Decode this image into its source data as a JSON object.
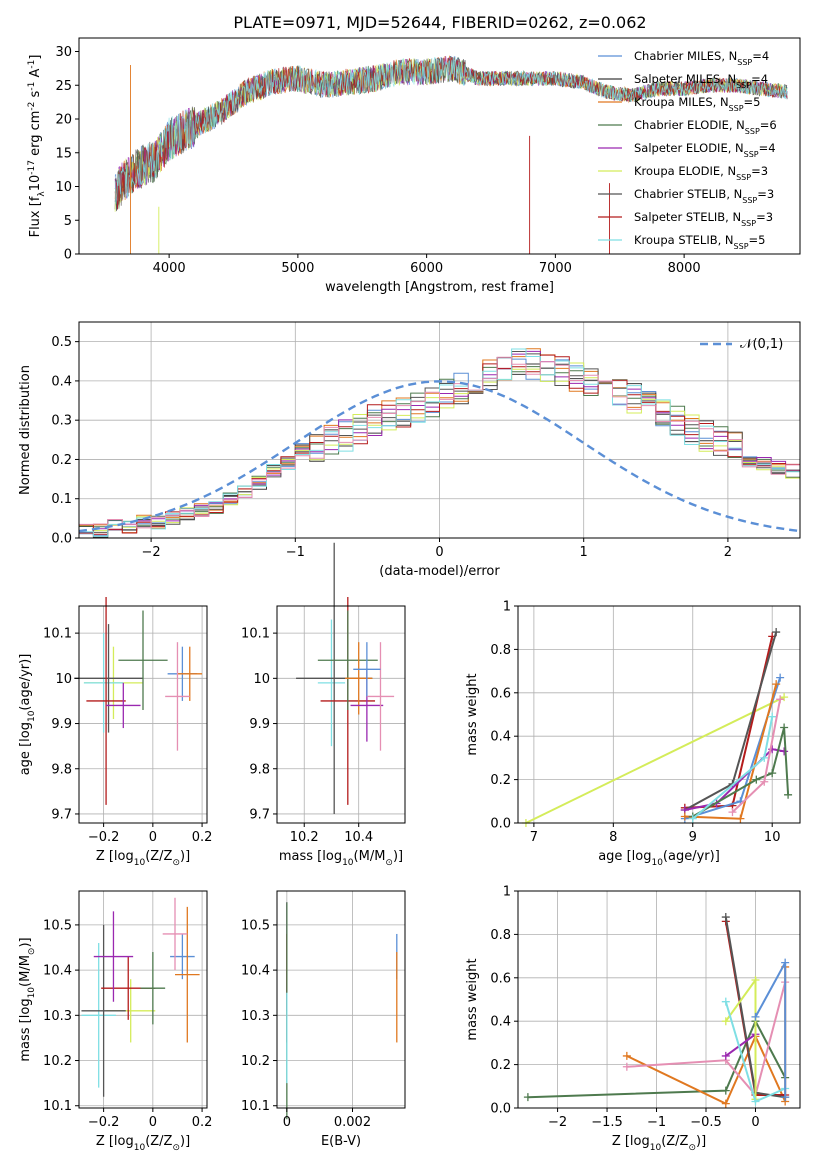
{
  "figure_title": "PLATE=0971, MJD=52644, FIBERID=0262, z=0.062",
  "legend_spectrum": [
    {
      "name": "Chabrier MILES, N$_{SSP}$=4",
      "main": "Chabrier MILES, N",
      "sub": "SSP",
      "tail": "=4",
      "color": "#5b8fd6"
    },
    {
      "name": "Salpeter MILES, N_SSP=4",
      "main": "Salpeter MILES, N",
      "sub": "SSP",
      "tail": "=4",
      "color": "#3c3c3c"
    },
    {
      "name": "Kroupa MILES, N_SSP=5",
      "main": "Kroupa MILES, N",
      "sub": "SSP",
      "tail": "=5",
      "color": "#e07820"
    },
    {
      "name": "Chabrier ELODIE, N_SSP=6",
      "main": "Chabrier ELODIE, N",
      "sub": "SSP",
      "tail": "=6",
      "color": "#4e7a4e"
    },
    {
      "name": "Salpeter ELODIE, N_SSP=4",
      "main": "Salpeter ELODIE, N",
      "sub": "SSP",
      "tail": "=4",
      "color": "#9a28b0"
    },
    {
      "name": "Kroupa ELODIE, N_SSP=3",
      "main": "Kroupa ELODIE, N",
      "sub": "SSP",
      "tail": "=3",
      "color": "#d4ec5a"
    },
    {
      "name": "Chabrier STELIB, N_SSP=3",
      "main": "Chabrier STELIB, N",
      "sub": "SSP",
      "tail": "=3",
      "color": "#555555"
    },
    {
      "name": "Salpeter STELIB, N_SSP=3",
      "main": "Salpeter STELIB, N",
      "sub": "SSP",
      "tail": "=3",
      "color": "#b41c1c"
    },
    {
      "name": "Kroupa STELIB, N_SSP=5",
      "main": "Kroupa STELIB, N",
      "sub": "SSP",
      "tail": "=5",
      "color": "#7fdfe4"
    }
  ],
  "hist_colors": [
    "#5b8fd6",
    "#3c3c3c",
    "#e07820",
    "#4e7a4e",
    "#9a28b0",
    "#d4ec5a",
    "#555555",
    "#b41c1c",
    "#7fdfe4",
    "#e58fb3"
  ],
  "chart_data": [
    {
      "id": "spectrum",
      "type": "line",
      "xlabel": "wavelength [Angstrom, rest frame]",
      "ylabel": "Flux [f$_\\lambda$10$^{-17}$ erg cm$^{-2}$ s$^{-1}$ A$^{-1}$]",
      "xlim": [
        3300,
        8900
      ],
      "ylim": [
        0,
        32
      ],
      "xticks": [
        4000,
        5000,
        6000,
        7000,
        8000
      ],
      "yticks": [
        0,
        5,
        10,
        15,
        20,
        25,
        30
      ],
      "grid": false,
      "legend": "top-right",
      "x": [
        3580,
        3700,
        3800,
        3900,
        4000,
        4200,
        4400,
        4600,
        4800,
        5000,
        5200,
        5400,
        5600,
        5800,
        6000,
        6200,
        6400,
        6600,
        6800,
        7000,
        7200,
        7400,
        7600,
        7800,
        8000,
        8200,
        8400,
        8600,
        8800
      ],
      "y": [
        9,
        12,
        13,
        14,
        17,
        19,
        21,
        24,
        25.5,
        26,
        25,
        25.5,
        26,
        27,
        27,
        27.5,
        26,
        26,
        26,
        26,
        25.5,
        24,
        23.5,
        24.5,
        24.5,
        25,
        25,
        24.5,
        24
      ]
    },
    {
      "id": "residual_hist",
      "type": "histogram",
      "xlabel": "(data-model)/error",
      "ylabel": "Normed distribution",
      "xlim": [
        -2.5,
        2.5
      ],
      "ylim": [
        0,
        0.55
      ],
      "xticks": [
        -2,
        -1,
        0,
        1,
        2
      ],
      "yticks": [
        0.0,
        0.1,
        0.2,
        0.3,
        0.4,
        0.5
      ],
      "grid": true,
      "legend": "top-right",
      "reference_curve": "$\\mathcal{N}(0,1)$",
      "bin_width": 0.1,
      "bin_start": -2.5,
      "base_values": [
        0.02,
        0.02,
        0.03,
        0.03,
        0.04,
        0.04,
        0.05,
        0.06,
        0.07,
        0.08,
        0.1,
        0.12,
        0.14,
        0.17,
        0.19,
        0.21,
        0.23,
        0.25,
        0.26,
        0.28,
        0.3,
        0.31,
        0.32,
        0.33,
        0.35,
        0.37,
        0.38,
        0.4,
        0.42,
        0.43,
        0.45,
        0.44,
        0.43,
        0.42,
        0.41,
        0.4,
        0.39,
        0.38,
        0.36,
        0.34,
        0.32,
        0.3,
        0.28,
        0.26,
        0.25,
        0.23,
        0.21,
        0.19,
        0.18,
        0.17,
        0.15,
        0.13,
        0.12,
        0.1,
        0.09,
        0.08,
        0.07,
        0.06,
        0.06,
        0.05,
        0.05,
        0.05,
        0.04,
        0.04,
        0.03,
        0.03,
        0.03,
        0.02,
        0.02,
        0.02,
        0.02
      ]
    },
    {
      "id": "age_vs_Z",
      "type": "scatter",
      "xlabel": "Z [log$_{10}$(Z/Z$_\\odot$)]",
      "ylabel": "age  [log$_{10}$(age/yr)]",
      "xlim": [
        -0.3,
        0.22
      ],
      "ylim": [
        9.68,
        10.16
      ],
      "xticks": [
        -0.2,
        0.0,
        0.2
      ],
      "yticks": [
        9.7,
        9.8,
        9.9,
        10.0,
        10.1
      ],
      "grid": true,
      "points": [
        {
          "x": -0.16,
          "y": 9.99,
          "xerr": 0.12,
          "yerr": 0.08,
          "c": 5
        },
        {
          "x": -0.2,
          "y": 9.99,
          "xerr": 0.08,
          "yerr": 0.11,
          "c": 8
        },
        {
          "x": -0.18,
          "y": 10.0,
          "xerr": 0.14,
          "yerr": 0.12,
          "c": 6
        },
        {
          "x": -0.19,
          "y": 9.95,
          "xerr": 0.08,
          "yerr": 0.23,
          "c": 7
        },
        {
          "x": -0.12,
          "y": 9.94,
          "xerr": 0.07,
          "yerr": 0.05,
          "c": 4
        },
        {
          "x": -0.04,
          "y": 10.04,
          "xerr": 0.1,
          "yerr": 0.11,
          "c": 3
        },
        {
          "x": 0.12,
          "y": 10.01,
          "xerr": 0.06,
          "yerr": 0.06,
          "c": 0
        },
        {
          "x": 0.15,
          "y": 10.01,
          "xerr": 0.05,
          "yerr": 0.06,
          "c": 2
        },
        {
          "x": 0.1,
          "y": 9.96,
          "xerr": 0.05,
          "yerr": 0.12,
          "c": 9
        }
      ]
    },
    {
      "id": "age_vs_mass",
      "type": "scatter",
      "xlabel": "mass [log$_{10}$(M/M$_\\odot$)]",
      "ylabel": "",
      "xlim": [
        10.1,
        10.57
      ],
      "ylim": [
        9.68,
        10.16
      ],
      "xticks": [
        10.2,
        10.4
      ],
      "yticks": [
        9.7,
        9.8,
        9.9,
        10.0,
        10.1
      ],
      "grid": true,
      "points": [
        {
          "x": 10.3,
          "y": 9.99,
          "xerr": 0.05,
          "yerr": 0.14,
          "c": 8
        },
        {
          "x": 10.31,
          "y": 10.0,
          "xerr": 0.14,
          "yerr": 0.3,
          "c": 6
        },
        {
          "x": 10.36,
          "y": 9.95,
          "xerr": 0.1,
          "yerr": 0.23,
          "c": 7
        },
        {
          "x": 10.36,
          "y": 10.04,
          "xerr": 0.11,
          "yerr": 0.11,
          "c": 3
        },
        {
          "x": 10.4,
          "y": 10.0,
          "xerr": 0.05,
          "yerr": 0.08,
          "c": 2
        },
        {
          "x": 10.43,
          "y": 9.94,
          "xerr": 0.06,
          "yerr": 0.08,
          "c": 4
        },
        {
          "x": 10.48,
          "y": 9.96,
          "xerr": 0.05,
          "yerr": 0.12,
          "c": 9
        },
        {
          "x": 10.43,
          "y": 10.02,
          "xerr": 0.05,
          "yerr": 0.06,
          "c": 0
        }
      ]
    },
    {
      "id": "weight_vs_age",
      "type": "line",
      "xlabel": "age  [log$_{10}$(age/yr)]",
      "ylabel": "mass weight",
      "xlim": [
        6.8,
        10.35
      ],
      "ylim": [
        0,
        1.0
      ],
      "xticks": [
        7,
        8,
        9,
        10
      ],
      "yticks": [
        0.0,
        0.2,
        0.4,
        0.6,
        0.8,
        1.0
      ],
      "grid": true,
      "series": [
        {
          "c": 5,
          "x": [
            6.9,
            10.15
          ],
          "y": [
            0.0,
            0.58
          ]
        },
        {
          "c": 7,
          "x": [
            8.9,
            9.5,
            10.0
          ],
          "y": [
            0.07,
            0.08,
            0.86
          ]
        },
        {
          "c": 6,
          "x": [
            8.9,
            9.5,
            10.05
          ],
          "y": [
            0.06,
            0.18,
            0.88
          ]
        },
        {
          "c": 4,
          "x": [
            8.9,
            9.3,
            10.0,
            10.15
          ],
          "y": [
            0.06,
            0.09,
            0.34,
            0.33
          ]
        },
        {
          "c": 0,
          "x": [
            8.9,
            9.6,
            10.1
          ],
          "y": [
            0.02,
            0.1,
            0.67
          ]
        },
        {
          "c": 2,
          "x": [
            8.9,
            9.6,
            10.05
          ],
          "y": [
            0.03,
            0.02,
            0.64
          ]
        },
        {
          "c": 3,
          "x": [
            9.0,
            9.8,
            10.0,
            10.15,
            10.2
          ],
          "y": [
            0.03,
            0.2,
            0.23,
            0.44,
            0.13
          ]
        },
        {
          "c": 8,
          "x": [
            9.0,
            9.9,
            10.0
          ],
          "y": [
            0.02,
            0.3,
            0.49
          ]
        },
        {
          "c": 9,
          "x": [
            9.5,
            9.9,
            10.1
          ],
          "y": [
            0.05,
            0.19,
            0.57
          ]
        }
      ]
    },
    {
      "id": "mass_vs_Z",
      "type": "scatter",
      "xlabel": "Z [log$_{10}$(Z/Z$_\\odot$)]",
      "ylabel": "mass [log$_{10}$(M/M$_\\odot$)]",
      "xlim": [
        -0.3,
        0.22
      ],
      "ylim": [
        10.095,
        10.575
      ],
      "xticks": [
        -0.2,
        0.0,
        0.2
      ],
      "yticks": [
        10.1,
        10.2,
        10.3,
        10.4,
        10.5
      ],
      "grid": true,
      "points": [
        {
          "x": -0.22,
          "y": 10.3,
          "xerr": 0.07,
          "yerr": 0.16,
          "c": 8
        },
        {
          "x": -0.09,
          "y": 10.31,
          "xerr": 0.1,
          "yerr": 0.07,
          "c": 5
        },
        {
          "x": -0.2,
          "y": 10.31,
          "xerr": 0.09,
          "yerr": 0.19,
          "c": 6
        },
        {
          "x": -0.1,
          "y": 10.36,
          "xerr": 0.11,
          "yerr": 0.07,
          "c": 7
        },
        {
          "x": -0.16,
          "y": 10.43,
          "xerr": 0.08,
          "yerr": 0.1,
          "c": 4
        },
        {
          "x": 0.0,
          "y": 10.36,
          "xerr": 0.05,
          "yerr": 0.08,
          "c": 3
        },
        {
          "x": 0.12,
          "y": 10.43,
          "xerr": 0.05,
          "yerr": 0.05,
          "c": 0
        },
        {
          "x": 0.14,
          "y": 10.39,
          "xerr": 0.05,
          "yerr": 0.15,
          "c": 2
        },
        {
          "x": 0.09,
          "y": 10.48,
          "xerr": 0.05,
          "yerr": 0.08,
          "c": 9
        }
      ]
    },
    {
      "id": "mass_vs_EBV",
      "type": "scatter",
      "xlabel": "E(B-V)",
      "ylabel": "",
      "xlim": [
        -0.0003,
        0.0036
      ],
      "ylim": [
        10.095,
        10.575
      ],
      "xticks": [
        0.0,
        0.002
      ],
      "yticks": [
        10.1,
        10.2,
        10.3,
        10.4,
        10.5
      ],
      "grid": true,
      "points": [
        {
          "x": 0.0,
          "y": 10.43,
          "xerr": 0,
          "yerr": 0.12,
          "c": 4
        },
        {
          "x": 0.0,
          "y": 10.36,
          "xerr": 0,
          "yerr": 0.12,
          "c": 7
        },
        {
          "x": 0.0,
          "y": 10.31,
          "xerr": 0,
          "yerr": 0.24,
          "c": 3
        },
        {
          "x": 0.0,
          "y": 10.25,
          "xerr": 0,
          "yerr": 0.1,
          "c": 8
        },
        {
          "x": 0.00335,
          "y": 10.43,
          "xerr": 0,
          "yerr": 0.05,
          "c": 0
        },
        {
          "x": 0.00335,
          "y": 10.34,
          "xerr": 0,
          "yerr": 0.1,
          "c": 2
        }
      ]
    },
    {
      "id": "weight_vs_Z",
      "type": "line",
      "xlabel": "Z [log$_{10}$(Z/Z$_\\odot$)]",
      "ylabel": "mass weight",
      "xlim": [
        -2.4,
        0.45
      ],
      "ylim": [
        0,
        1.0
      ],
      "xticks": [
        -2.0,
        -1.5,
        -1.0,
        -0.5,
        0.0
      ],
      "yticks": [
        0.0,
        0.2,
        0.4,
        0.6,
        0.8,
        1.0
      ],
      "grid": true,
      "series": [
        {
          "c": 3,
          "x": [
            -2.3,
            -0.3,
            0.0,
            0.3
          ],
          "y": [
            0.05,
            0.08,
            0.4,
            0.14
          ]
        },
        {
          "c": 2,
          "x": [
            -1.3,
            -0.3,
            0.0,
            0.3,
            0.3
          ],
          "y": [
            0.24,
            0.02,
            0.33,
            0.03,
            0.65
          ]
        },
        {
          "c": 9,
          "x": [
            -1.3,
            -0.3,
            0.0,
            0.3
          ],
          "y": [
            0.19,
            0.22,
            0.06,
            0.58
          ]
        },
        {
          "c": 7,
          "x": [
            -0.3,
            0.0,
            0.3
          ],
          "y": [
            0.86,
            0.06,
            0.06
          ]
        },
        {
          "c": 6,
          "x": [
            -0.3,
            0.0,
            0.3
          ],
          "y": [
            0.88,
            0.07,
            0.05
          ]
        },
        {
          "c": 4,
          "x": [
            -0.3,
            0.0
          ],
          "y": [
            0.24,
            0.34
          ]
        },
        {
          "c": 5,
          "x": [
            -0.3,
            0.0,
            0.0
          ],
          "y": [
            0.4,
            0.59,
            0.04
          ]
        },
        {
          "c": 8,
          "x": [
            -0.3,
            0.0,
            0.3
          ],
          "y": [
            0.49,
            0.03,
            0.09
          ]
        },
        {
          "c": 0,
          "x": [
            0.0,
            0.3,
            0.3
          ],
          "y": [
            0.42,
            0.67,
            0.05
          ]
        }
      ]
    }
  ]
}
